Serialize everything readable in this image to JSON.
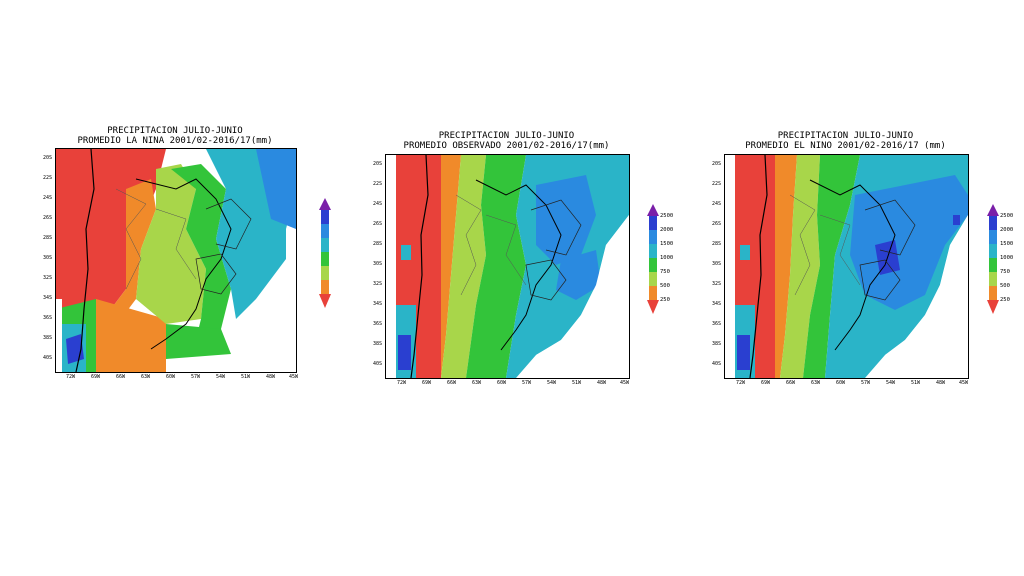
{
  "panels": [
    {
      "id": "la-nina",
      "title_line1": "PRECIPITACION JULIO-JUNIO",
      "title_line2": "PROMEDIO LA NINA 2001/02-2016/17(mm)",
      "lat_labels": [
        "20S",
        "22S",
        "24S",
        "26S",
        "28S",
        "30S",
        "32S",
        "34S",
        "36S",
        "38S",
        "40S"
      ],
      "lon_labels": [
        "72W",
        "69W",
        "66W",
        "63W",
        "60W",
        "57W",
        "54W",
        "51W",
        "48W",
        "45W"
      ],
      "colorbar_labels": []
    },
    {
      "id": "observado",
      "title_line1": "PRECIPITACION JULIO-JUNIO",
      "title_line2": "PROMEDIO OBSERVADO 2001/02-2016/17(mm)",
      "lat_labels": [
        "20S",
        "22S",
        "24S",
        "26S",
        "28S",
        "30S",
        "32S",
        "34S",
        "36S",
        "38S",
        "40S"
      ],
      "lon_labels": [
        "72W",
        "69W",
        "66W",
        "63W",
        "60W",
        "57W",
        "54W",
        "51W",
        "48W",
        "45W"
      ],
      "colorbar_labels": [
        "2500",
        "2000",
        "1500",
        "1000",
        "750",
        "500",
        "250"
      ]
    },
    {
      "id": "el-nino",
      "title_line1": "PRECIPITACION JULIO-JUNIO",
      "title_line2": "PROMEDIO EL NINO 2001/02-2016/17 (mm)",
      "lat_labels": [
        "20S",
        "22S",
        "24S",
        "26S",
        "28S",
        "30S",
        "32S",
        "34S",
        "36S",
        "38S",
        "40S"
      ],
      "lon_labels": [
        "72W",
        "69W",
        "66W",
        "63W",
        "60W",
        "57W",
        "54W",
        "51W",
        "48W",
        "45W"
      ],
      "colorbar_labels": [
        "2500",
        "2000",
        "1500",
        "1000",
        "750",
        "500",
        "250"
      ]
    }
  ],
  "colors": {
    "c2500": "#7a1fa8",
    "c2000": "#2a3fd0",
    "c1500": "#2a8ae0",
    "c1000": "#2ab4c8",
    "c750": "#33c43a",
    "c500": "#a8d64a",
    "c250": "#f08a2a",
    "c0": "#e8413a"
  }
}
